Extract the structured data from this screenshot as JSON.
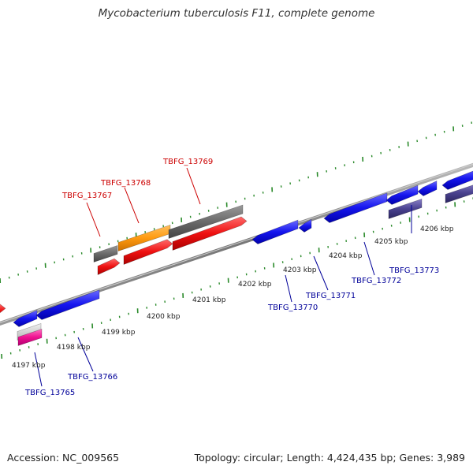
{
  "title": "Mycobacterium tuberculosis F11, complete genome",
  "footer": {
    "accession": "Accession: NC_009565",
    "topology": "Topology: circular; Length: 4,424,435 bp; Genes: 3,989"
  },
  "colors": {
    "forward_label": "#cc0000",
    "reverse_label": "#000099",
    "tick": "#2a8a2a",
    "backbone": "#888888"
  },
  "kbp_labels": [
    "4197 kbp",
    "4198 kbp",
    "4199 kbp",
    "4200 kbp",
    "4201 kbp",
    "4202 kbp",
    "4203 kbp",
    "4204 kbp",
    "4205 kbp",
    "4206 kbp"
  ],
  "gene_labels": {
    "forward": [
      "TBFG_13767",
      "TBFG_13768",
      "TBFG_13769"
    ],
    "reverse": [
      "TBFG_13765",
      "TBFG_13766",
      "TBFG_13770",
      "TBFG_13771",
      "TBFG_13772",
      "TBFG_13773"
    ]
  }
}
